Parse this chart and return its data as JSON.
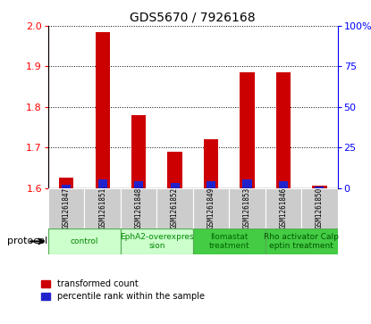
{
  "title": "GDS5670 / 7926168",
  "samples": [
    "GSM1261847",
    "GSM1261851",
    "GSM1261848",
    "GSM1261852",
    "GSM1261849",
    "GSM1261853",
    "GSM1261846",
    "GSM1261850"
  ],
  "transformed_count": [
    1.625,
    1.985,
    1.78,
    1.69,
    1.72,
    1.885,
    1.885,
    1.605
  ],
  "percentile_rank": [
    2,
    5,
    4,
    3,
    4,
    5,
    4,
    1
  ],
  "ylim_left": [
    1.6,
    2.0
  ],
  "yticks_left": [
    1.6,
    1.7,
    1.8,
    1.9,
    2.0
  ],
  "yticks_right": [
    0,
    25,
    50,
    75,
    100
  ],
  "ylim_right": [
    0,
    100
  ],
  "red_color": "#cc0000",
  "blue_color": "#2222cc",
  "protocol_groups": [
    {
      "start": 0,
      "end": 1,
      "label": "control",
      "color": "#ccffcc",
      "text_color": "#008800"
    },
    {
      "start": 2,
      "end": 3,
      "label": "EphA2-overexpres\nsion",
      "color": "#ccffcc",
      "text_color": "#008800"
    },
    {
      "start": 4,
      "end": 5,
      "label": "Ilomastat\ntreatment",
      "color": "#44cc44",
      "text_color": "#006600"
    },
    {
      "start": 6,
      "end": 7,
      "label": "Rho activator Calp\neptin treatment",
      "color": "#44cc44",
      "text_color": "#005500"
    }
  ],
  "sample_row_color": "#cccccc",
  "legend_red_label": "transformed count",
  "legend_blue_label": "percentile rank within the sample",
  "bar_width": 0.4,
  "blue_bar_width": 0.25
}
